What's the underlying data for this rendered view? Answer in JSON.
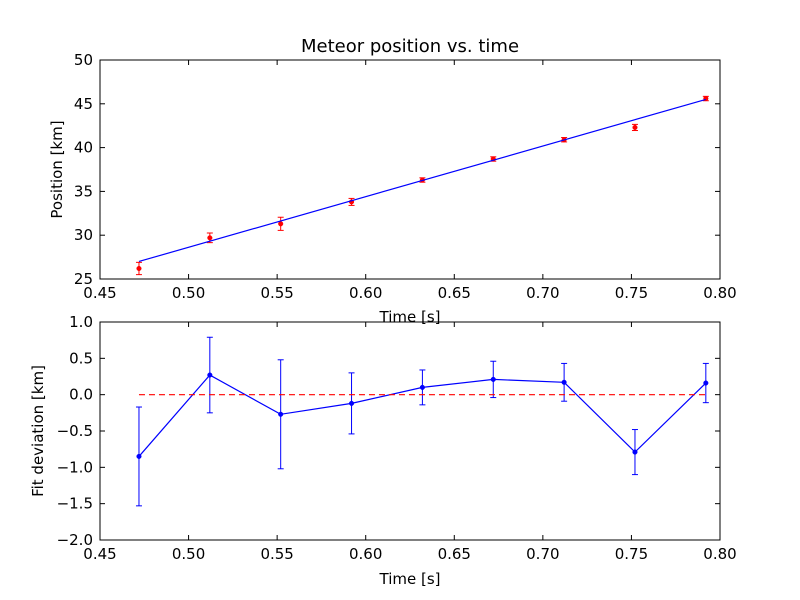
{
  "chart_data": [
    {
      "type": "scatter",
      "title": "Meteor position vs. time",
      "xlabel": "Time [s]",
      "ylabel": "Position [km]",
      "xlim": [
        0.45,
        0.8
      ],
      "ylim": [
        25,
        50
      ],
      "xticks": [
        "0.45",
        "0.50",
        "0.55",
        "0.60",
        "0.65",
        "0.70",
        "0.75",
        "0.80"
      ],
      "yticks": [
        "25",
        "30",
        "35",
        "40",
        "45",
        "50"
      ],
      "grid": false,
      "series": [
        {
          "kind": "errorbar",
          "color": "#ff0000",
          "x": [
            0.472,
            0.512,
            0.552,
            0.592,
            0.632,
            0.672,
            0.712,
            0.752,
            0.792
          ],
          "y": [
            26.2,
            29.7,
            31.3,
            33.8,
            36.3,
            38.7,
            40.9,
            42.3,
            45.6
          ],
          "yerr": [
            0.7,
            0.55,
            0.75,
            0.4,
            0.25,
            0.25,
            0.25,
            0.35,
            0.25
          ]
        },
        {
          "kind": "line",
          "color": "#0000ff",
          "x": [
            0.472,
            0.792
          ],
          "y": [
            27.0,
            45.5
          ]
        }
      ]
    },
    {
      "type": "line",
      "title": "",
      "xlabel": "Time [s]",
      "ylabel": "Fit deviation [km]",
      "xlim": [
        0.45,
        0.8
      ],
      "ylim": [
        -2.0,
        1.0
      ],
      "xticks": [
        "0.45",
        "0.50",
        "0.55",
        "0.60",
        "0.65",
        "0.70",
        "0.75",
        "0.80"
      ],
      "yticks": [
        "−2.0",
        "−1.5",
        "−1.0",
        "−0.5",
        "0.0",
        "0.5",
        "1.0"
      ],
      "grid": false,
      "series": [
        {
          "kind": "errorbar-line",
          "color": "#0000ff",
          "x": [
            0.472,
            0.512,
            0.552,
            0.592,
            0.632,
            0.672,
            0.712,
            0.752,
            0.792
          ],
          "y": [
            -0.85,
            0.27,
            -0.27,
            -0.12,
            0.1,
            0.21,
            0.17,
            -0.79,
            0.16
          ],
          "yerr": [
            0.68,
            0.52,
            0.75,
            0.42,
            0.24,
            0.25,
            0.26,
            0.31,
            0.27
          ]
        },
        {
          "kind": "reference-line",
          "color": "#ff0000",
          "style": "dashed",
          "x": [
            0.472,
            0.792
          ],
          "y": [
            0.0,
            0.0
          ]
        }
      ]
    }
  ]
}
